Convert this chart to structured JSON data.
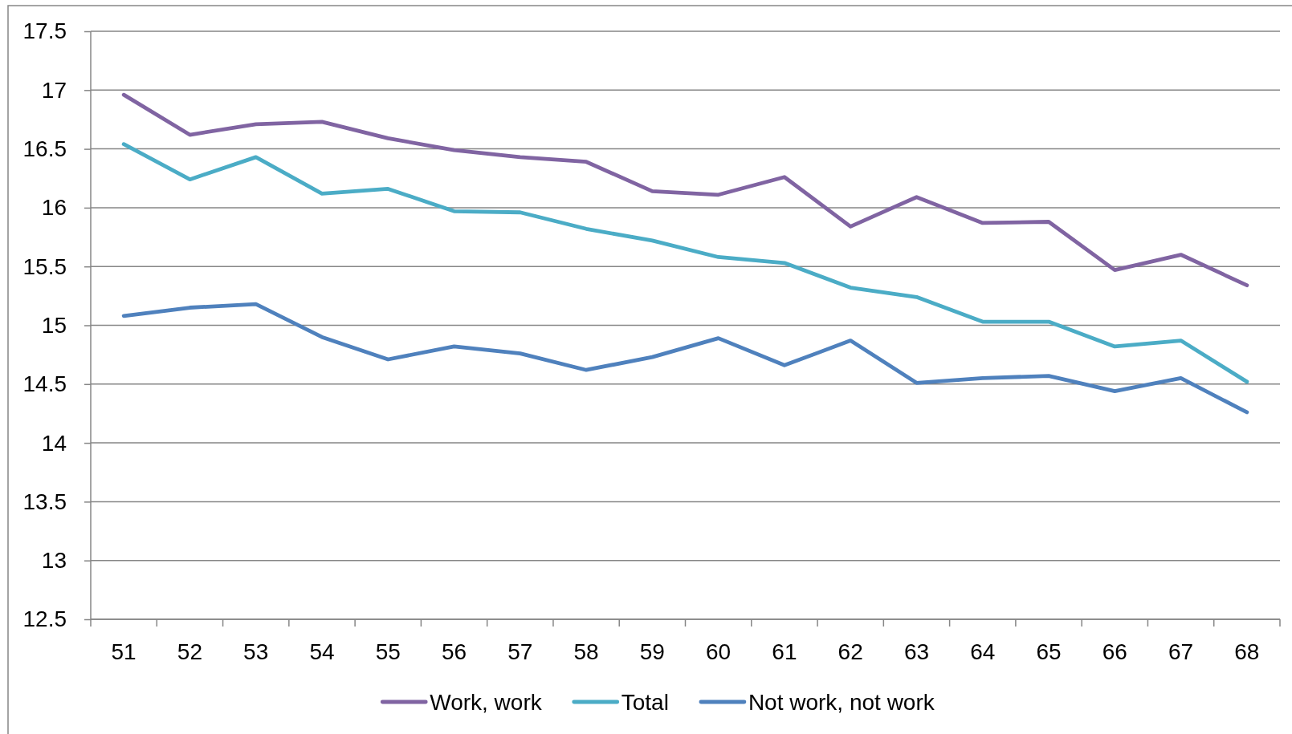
{
  "chart_data": {
    "type": "line",
    "categories": [
      "51",
      "52",
      "53",
      "54",
      "55",
      "56",
      "57",
      "58",
      "59",
      "60",
      "61",
      "62",
      "63",
      "64",
      "65",
      "66",
      "67",
      "68"
    ],
    "series": [
      {
        "name": "Work, work",
        "color": "#8064a2",
        "values": [
          16.96,
          16.62,
          16.71,
          16.73,
          16.59,
          16.49,
          16.43,
          16.39,
          16.14,
          16.11,
          16.26,
          15.84,
          16.09,
          15.87,
          15.88,
          15.47,
          15.6,
          15.34
        ]
      },
      {
        "name": "Total",
        "color": "#4bacc6",
        "values": [
          16.54,
          16.24,
          16.43,
          16.12,
          16.16,
          15.97,
          15.96,
          15.82,
          15.72,
          15.58,
          15.53,
          15.32,
          15.24,
          15.03,
          15.03,
          14.82,
          14.87,
          14.52
        ]
      },
      {
        "name": "Not work, not work",
        "color": "#4f81bd",
        "values": [
          15.08,
          15.15,
          15.18,
          14.9,
          14.71,
          14.82,
          14.76,
          14.62,
          14.73,
          14.89,
          14.66,
          14.87,
          14.51,
          14.55,
          14.57,
          14.44,
          14.55,
          14.26
        ]
      }
    ],
    "ylim": [
      12.5,
      17.5
    ],
    "yticks": [
      12.5,
      13,
      13.5,
      14,
      14.5,
      15,
      15.5,
      16,
      16.5,
      17,
      17.5
    ],
    "grid": "y",
    "legend": "bottom"
  }
}
